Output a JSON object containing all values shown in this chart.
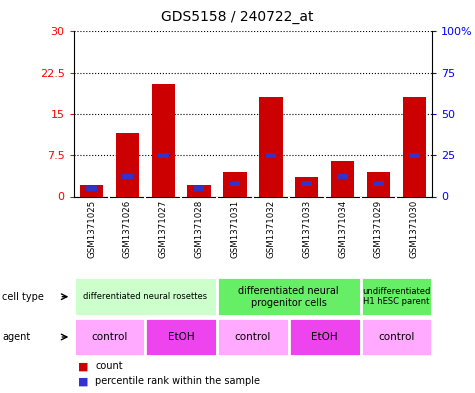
{
  "title": "GDS5158 / 240722_at",
  "samples": [
    "GSM1371025",
    "GSM1371026",
    "GSM1371027",
    "GSM1371028",
    "GSM1371031",
    "GSM1371032",
    "GSM1371033",
    "GSM1371034",
    "GSM1371029",
    "GSM1371030"
  ],
  "counts": [
    2.0,
    11.5,
    20.5,
    2.0,
    4.5,
    18.0,
    3.5,
    6.5,
    4.5,
    18.0
  ],
  "percentile_ranks": [
    5.0,
    12.0,
    25.0,
    5.0,
    8.0,
    25.0,
    8.0,
    12.0,
    8.0,
    25.0
  ],
  "ylim_left": [
    0,
    30
  ],
  "ylim_right": [
    0,
    100
  ],
  "yticks_left": [
    0,
    7.5,
    15,
    22.5,
    30
  ],
  "yticks_right": [
    0,
    25,
    50,
    75,
    100
  ],
  "bar_color": "#cc0000",
  "percentile_color": "#3333cc",
  "cell_type_groups": [
    {
      "label": "differentiated neural rosettes",
      "start": 0,
      "end": 4,
      "color": "#ccffcc",
      "fontsize": 6
    },
    {
      "label": "differentiated neural\nprogenitor cells",
      "start": 4,
      "end": 8,
      "color": "#66ee66",
      "fontsize": 7
    },
    {
      "label": "undifferentiated\nH1 hESC parent",
      "start": 8,
      "end": 10,
      "color": "#66ee66",
      "fontsize": 6
    }
  ],
  "agent_groups": [
    {
      "label": "control",
      "start": 0,
      "end": 2,
      "color": "#ffaaff"
    },
    {
      "label": "EtOH",
      "start": 2,
      "end": 4,
      "color": "#ee44ee"
    },
    {
      "label": "control",
      "start": 4,
      "end": 6,
      "color": "#ffaaff"
    },
    {
      "label": "EtOH",
      "start": 6,
      "end": 8,
      "color": "#ee44ee"
    },
    {
      "label": "control",
      "start": 8,
      "end": 10,
      "color": "#ffaaff"
    }
  ],
  "sample_bg_color": "#bbbbbb",
  "legend_count_color": "#cc0000",
  "legend_percentile_color": "#3333cc",
  "background_color": "#ffffff"
}
